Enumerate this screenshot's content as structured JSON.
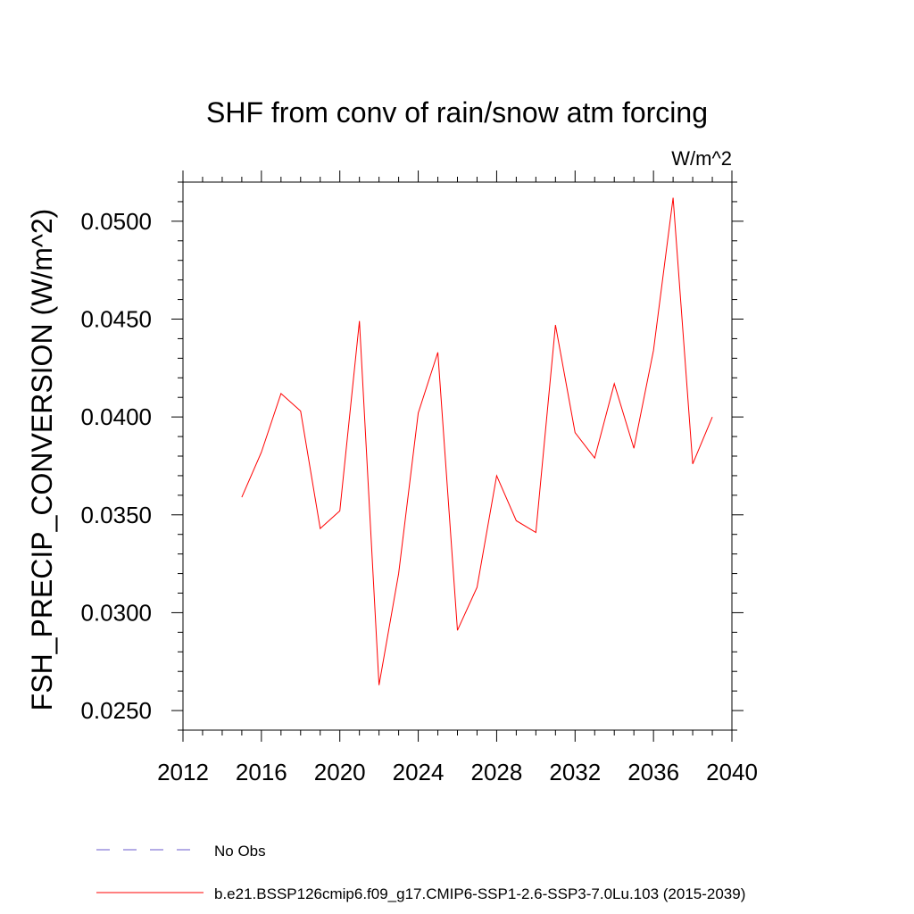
{
  "chart_data": {
    "type": "line",
    "title": "SHF from conv of rain/snow atm forcing",
    "units": "W/m^2",
    "xlabel": "",
    "ylabel": "FSH_PRECIP_CONVERSION  (W/m^2)",
    "xlim": [
      2012,
      2040
    ],
    "ylim": [
      0.024,
      0.052
    ],
    "x_ticks": [
      "2012",
      "2016",
      "2020",
      "2024",
      "2028",
      "2032",
      "2036",
      "2040"
    ],
    "y_ticks": [
      "0.0250",
      "0.0300",
      "0.0350",
      "0.0400",
      "0.0450",
      "0.0500"
    ],
    "x_tick_values": [
      2012,
      2016,
      2020,
      2024,
      2028,
      2032,
      2036,
      2040
    ],
    "y_tick_values": [
      0.025,
      0.03,
      0.035,
      0.04,
      0.045,
      0.05
    ],
    "grid": false,
    "legend_position": "bottom",
    "series": [
      {
        "name": "b.e21.BSSP126cmip6.f09_g17.CMIP6-SSP1-2.6-SSP3-7.0Lu.103 (2015-2039)",
        "color": "#ff0000",
        "style": "solid",
        "x": [
          2015,
          2016,
          2017,
          2018,
          2019,
          2020,
          2021,
          2022,
          2023,
          2024,
          2025,
          2026,
          2027,
          2028,
          2029,
          2030,
          2031,
          2032,
          2033,
          2034,
          2035,
          2036,
          2037,
          2038,
          2039
        ],
        "values": [
          0.0359,
          0.0382,
          0.0412,
          0.0403,
          0.0343,
          0.0352,
          0.0449,
          0.0263,
          0.032,
          0.0402,
          0.0433,
          0.0291,
          0.0313,
          0.037,
          0.0347,
          0.0341,
          0.0447,
          0.0392,
          0.0379,
          0.0417,
          0.0384,
          0.0434,
          0.0512,
          0.0376,
          0.04
        ]
      }
    ],
    "legend": [
      {
        "label": "No Obs",
        "color": "#6a5acd",
        "style": "dashed"
      },
      {
        "label": "b.e21.BSSP126cmip6.f09_g17.CMIP6-SSP1-2.6-SSP3-7.0Lu.103 (2015-2039)",
        "color": "#ff0000",
        "style": "solid"
      }
    ]
  }
}
